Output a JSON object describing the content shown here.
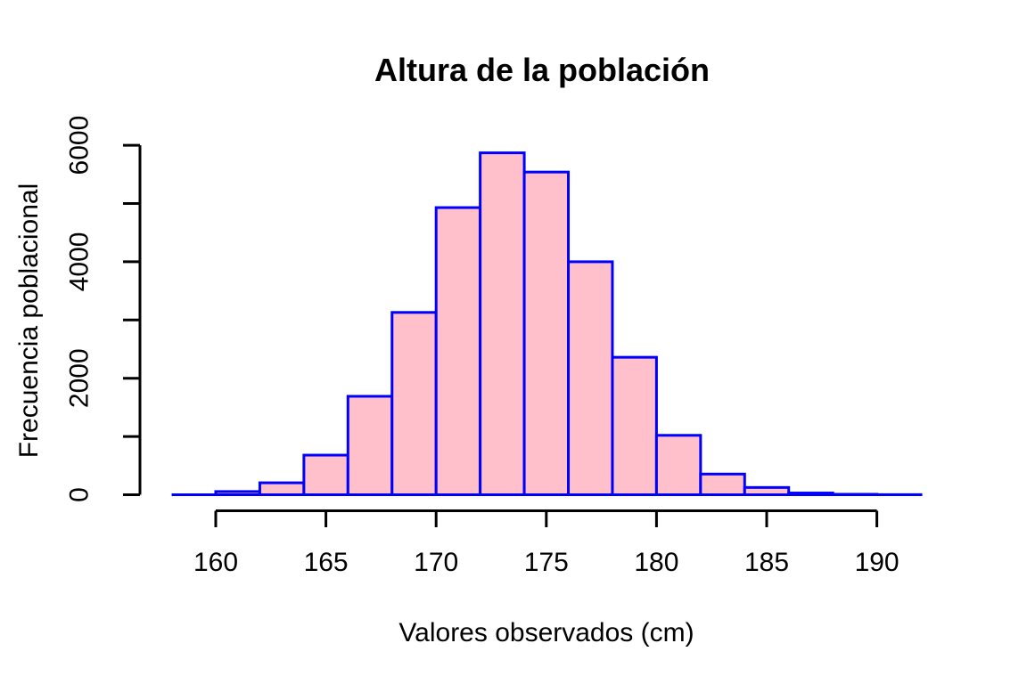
{
  "chart_data": {
    "type": "bar",
    "subtype": "histogram",
    "title": "Altura de la población",
    "xlabel": "Valores observados (cm)",
    "ylabel": "Frecuencia poblacional",
    "x_ticks": [
      160,
      165,
      170,
      175,
      180,
      185,
      190
    ],
    "x_tick_labels": [
      "160",
      "165",
      "170",
      "175",
      "180",
      "185",
      "190"
    ],
    "y_ticks": [
      0,
      1000,
      2000,
      3000,
      4000,
      5000,
      6000
    ],
    "y_tick_labels": [
      "0",
      "",
      "2000",
      "",
      "4000",
      "",
      "6000"
    ],
    "xlim": [
      158,
      192
    ],
    "ylim": [
      0,
      6000
    ],
    "bin_start": 160,
    "bin_width": 2,
    "bin_edges": [
      160,
      162,
      164,
      166,
      168,
      170,
      172,
      174,
      176,
      178,
      180,
      182,
      184,
      186,
      188,
      190,
      192
    ],
    "counts": [
      55,
      205,
      680,
      1690,
      3130,
      4930,
      5870,
      5540,
      4000,
      2360,
      1020,
      355,
      125,
      30,
      8,
      2
    ],
    "baseline_extent": [
      158,
      192
    ],
    "grid": "off",
    "legend": "none",
    "colors": {
      "bar_fill": "#FFC0CB",
      "bar_border": "#0000FF",
      "axis": "#000000",
      "text": "#000000",
      "background": "#FFFFFF"
    }
  }
}
